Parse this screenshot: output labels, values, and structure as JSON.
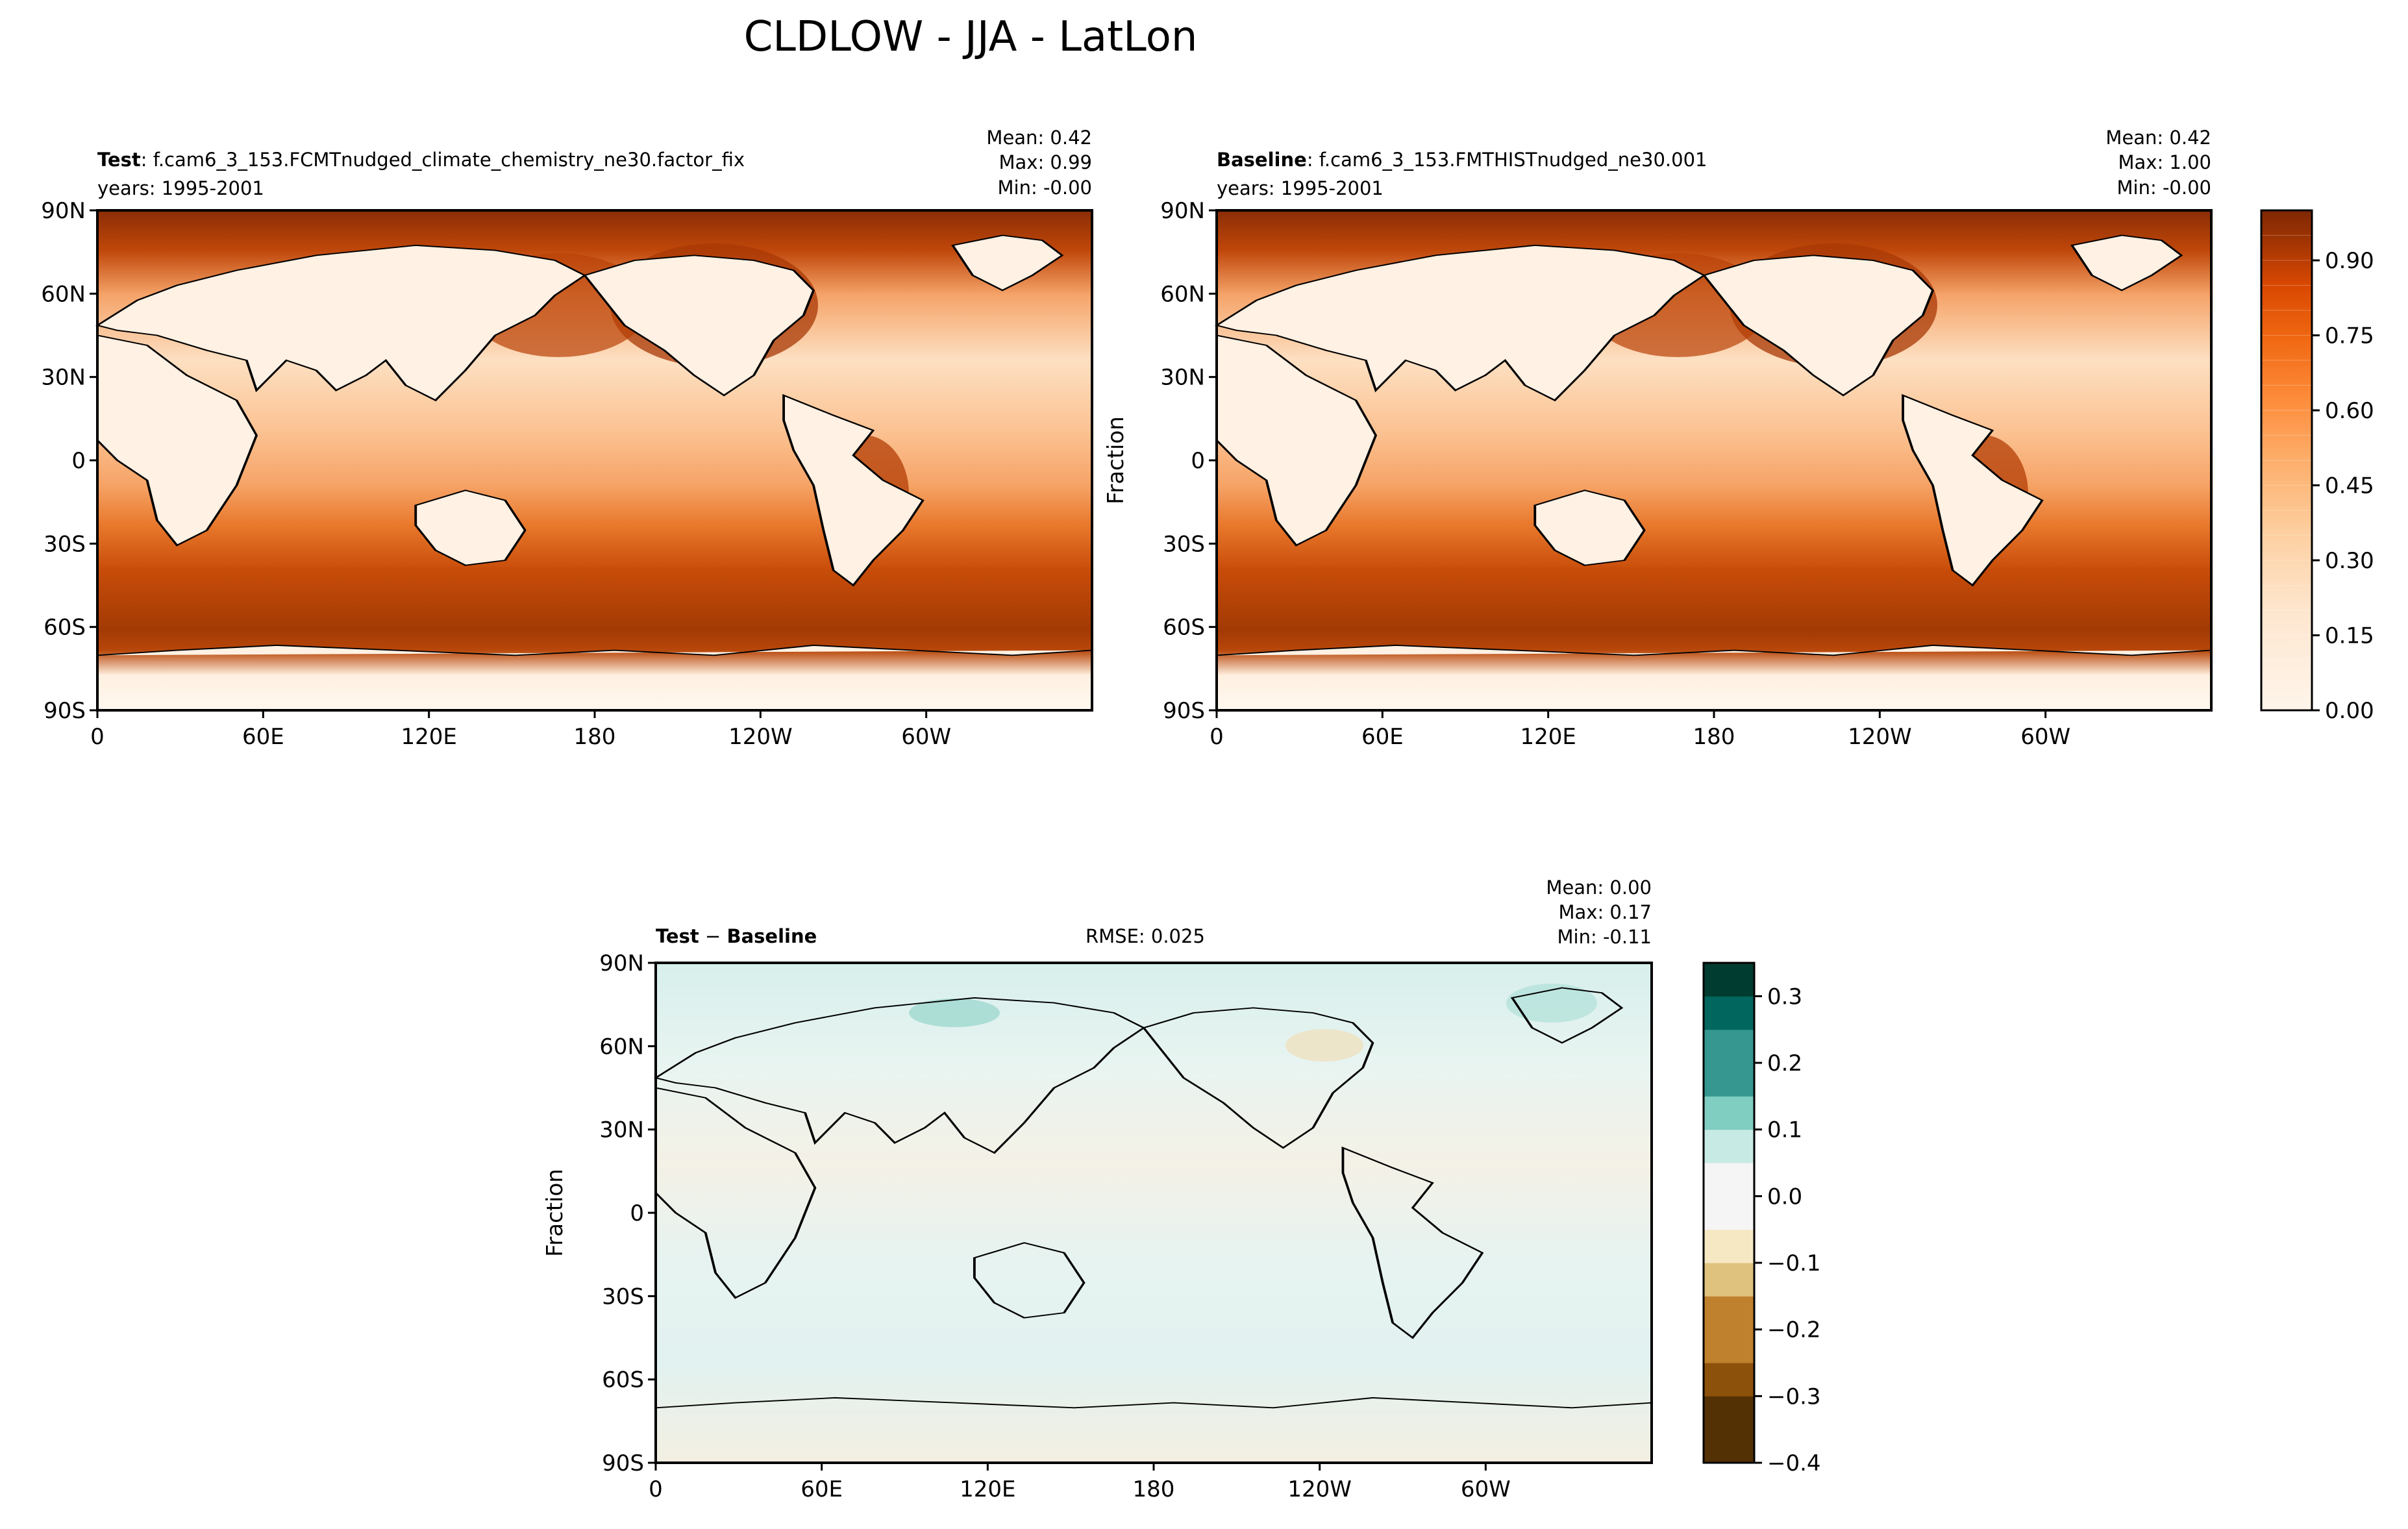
{
  "figure": {
    "title": "CLDLOW - JJA - LatLon"
  },
  "chart_data": [
    {
      "type": "heatmap",
      "panel": "test",
      "label_bold": "Test",
      "label_rest": ": f.cam6_3_153.FCMTnudged_climate_chemistry_ne30.factor_fix",
      "years": "years: 1995-2001",
      "stats": {
        "mean": "Mean:  0.42",
        "max": "Max:  0.99",
        "min": "Min: -0.00"
      },
      "ylabel": "",
      "xticks": [
        "0",
        "60E",
        "120E",
        "180",
        "120W",
        "60W"
      ],
      "yticks": [
        "90N",
        "60N",
        "30N",
        "0",
        "30S",
        "60S",
        "90S"
      ],
      "xlim": [
        0,
        360
      ],
      "ylim": [
        -90,
        90
      ]
    },
    {
      "type": "heatmap",
      "panel": "baseline",
      "label_bold": "Baseline",
      "label_rest": ": f.cam6_3_153.FMTHISTnudged_ne30.001",
      "years": "years: 1995-2001",
      "stats": {
        "mean": "Mean:  0.42",
        "max": "Max:  1.00",
        "min": "Min: -0.00"
      },
      "ylabel": "Fraction",
      "xticks": [
        "0",
        "60E",
        "120E",
        "180",
        "120W",
        "60W"
      ],
      "yticks": [
        "90N",
        "60N",
        "30N",
        "0",
        "30S",
        "60S",
        "90S"
      ],
      "xlim": [
        0,
        360
      ],
      "ylim": [
        -90,
        90
      ]
    },
    {
      "type": "heatmap",
      "panel": "diff",
      "label_bold": "Test",
      "label_mid": " − ",
      "label_bold2": "Baseline",
      "rmse": "RMSE: 0.025",
      "stats": {
        "mean": "Mean:  0.00",
        "max": "Max:  0.17",
        "min": "Min: -0.11"
      },
      "ylabel": "Fraction",
      "xticks": [
        "0",
        "60E",
        "120E",
        "180",
        "120W",
        "60W"
      ],
      "yticks": [
        "90N",
        "60N",
        "30N",
        "0",
        "30S",
        "60S",
        "90S"
      ],
      "xlim": [
        0,
        360
      ],
      "ylim": [
        -90,
        90
      ]
    }
  ],
  "colorbars": {
    "main": {
      "ticks": [
        "0.00",
        "0.15",
        "0.30",
        "0.45",
        "0.60",
        "0.75",
        "0.90"
      ],
      "range": [
        0,
        1
      ],
      "colors": [
        "#fff5eb",
        "#fee6ce",
        "#fdd0a2",
        "#fdae6b",
        "#fd8d3c",
        "#f16913",
        "#d94801",
        "#a63603",
        "#7f2704"
      ]
    },
    "diff": {
      "ticks": [
        "0.3",
        "0.2",
        "0.1",
        "0.0",
        "−0.1",
        "−0.2",
        "−0.3",
        "−0.4"
      ],
      "range": [
        -0.4,
        0.35
      ],
      "colors": [
        "#543005",
        "#8c510a",
        "#bf812d",
        "#dfc27d",
        "#f6e8c3",
        "#f5f5f5",
        "#c7eae5",
        "#80cdc1",
        "#35978f",
        "#01665e",
        "#003c30"
      ]
    }
  },
  "colors": {
    "land_outline": "#000000"
  }
}
